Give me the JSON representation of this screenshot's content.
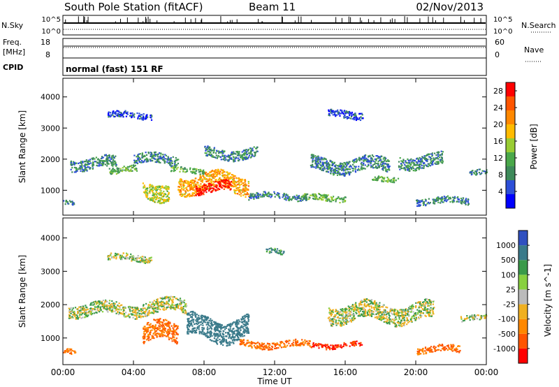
{
  "header": {
    "station": "South Pole Station (fitACF)",
    "beam": "Beam 11",
    "date": "02/Nov/2013"
  },
  "noise_panel": {
    "left_label": "N.Sky",
    "right_label": "N.Search",
    "left_ticks": [
      "10^5",
      "10^0"
    ],
    "right_ticks": [
      "10^5",
      "10^0"
    ]
  },
  "freq_panel": {
    "left_label_1": "Freq.",
    "left_label_2": "[MHz]",
    "right_label": "Nave",
    "left_ticks": [
      "18",
      "8"
    ],
    "right_ticks": [
      "60",
      "0"
    ]
  },
  "cpid_panel": {
    "label": "CPID",
    "text": "normal (fast) 151 RF"
  },
  "axes": {
    "ylabel": "Slant Range [km]",
    "xlabel": "Time UT",
    "xticks": [
      "00:00",
      "04:00",
      "08:00",
      "12:00",
      "16:00",
      "20:00",
      "00:00"
    ],
    "yticks": [
      "1000",
      "2000",
      "3000",
      "4000"
    ]
  },
  "colors": {
    "power_scale": [
      "#0000ff",
      "#2d4fd8",
      "#3e8a5a",
      "#4aa84a",
      "#99cc33",
      "#ffbb00",
      "#ff8800",
      "#ff5500",
      "#ff0000"
    ],
    "velocity_scale": [
      "#3050c0",
      "#3a7a8a",
      "#3a9a4a",
      "#88d040",
      "#bbbbbb",
      "#f0b020",
      "#ff8800",
      "#ff5500",
      "#ff0000"
    ]
  },
  "chart_data": [
    {
      "type": "heatmap",
      "name": "power",
      "title": "",
      "xlabel": "",
      "ylabel": "Slant Range [km]",
      "xlim": [
        0,
        24
      ],
      "ylim": [
        200,
        4600
      ],
      "colorbar": {
        "label": "Power [dB]",
        "ticks": [
          "4",
          "8",
          "12",
          "16",
          "20",
          "24",
          "28"
        ],
        "range": [
          0,
          30
        ]
      },
      "features": [
        {
          "x": [
            0.0,
            0.6
          ],
          "y": [
            550,
            750
          ],
          "level": 8
        },
        {
          "x": [
            0.4,
            3.0
          ],
          "y": [
            1650,
            2100
          ],
          "level": 8
        },
        {
          "x": [
            2.6,
            4.2
          ],
          "y": [
            1550,
            1800
          ],
          "level": 12
        },
        {
          "x": [
            4.0,
            6.5
          ],
          "y": [
            1800,
            2200
          ],
          "level": 8
        },
        {
          "x": [
            6.0,
            8.0
          ],
          "y": [
            1550,
            1750
          ],
          "level": 12
        },
        {
          "x": [
            8.0,
            11.0
          ],
          "y": [
            2000,
            2400
          ],
          "level": 8
        },
        {
          "x": [
            4.5,
            6.0
          ],
          "y": [
            700,
            1400
          ],
          "level": 16
        },
        {
          "x": [
            6.5,
            10.5
          ],
          "y": [
            900,
            1600
          ],
          "level": 20
        },
        {
          "x": [
            7.5,
            9.5
          ],
          "y": [
            900,
            1300
          ],
          "level": 28
        },
        {
          "x": [
            10.5,
            13.8
          ],
          "y": [
            700,
            950
          ],
          "level": 8
        },
        {
          "x": [
            13.5,
            16.0
          ],
          "y": [
            650,
            900
          ],
          "level": 12
        },
        {
          "x": [
            14.0,
            18.5
          ],
          "y": [
            1550,
            2100
          ],
          "level": 8
        },
        {
          "x": [
            17.5,
            19.0
          ],
          "y": [
            1300,
            1500
          ],
          "level": 12
        },
        {
          "x": [
            19.0,
            21.5
          ],
          "y": [
            1700,
            2200
          ],
          "level": 8
        },
        {
          "x": [
            20.0,
            23.0
          ],
          "y": [
            550,
            800
          ],
          "level": 8
        },
        {
          "x": [
            23.0,
            24.0
          ],
          "y": [
            1500,
            1700
          ],
          "level": 8
        },
        {
          "x": [
            2.5,
            5.0
          ],
          "y": [
            3300,
            3550
          ],
          "level": 4
        },
        {
          "x": [
            15.0,
            17.0
          ],
          "y": [
            3300,
            3600
          ],
          "level": 4
        }
      ]
    },
    {
      "type": "heatmap",
      "name": "velocity",
      "title": "",
      "xlabel": "Time UT",
      "ylabel": "Slant Range [km]",
      "xlim": [
        0,
        24
      ],
      "ylim": [
        200,
        4600
      ],
      "colorbar": {
        "label": "Velocity [m s^-1]",
        "ticks": [
          "1000",
          "500",
          "100",
          "25",
          "-25",
          "-100",
          "-500",
          "-1000"
        ],
        "range": [
          -1000,
          1000
        ]
      },
      "features": [
        {
          "x": [
            0.0,
            0.7
          ],
          "y": [
            550,
            750
          ],
          "level": -500
        },
        {
          "x": [
            0.3,
            4.5
          ],
          "y": [
            1650,
            2100
          ],
          "level": 0
        },
        {
          "x": [
            4.5,
            7.0
          ],
          "y": [
            1700,
            2200
          ],
          "level": 0
        },
        {
          "x": [
            4.5,
            6.5
          ],
          "y": [
            800,
            1500
          ],
          "level": -500
        },
        {
          "x": [
            7.0,
            10.5
          ],
          "y": [
            900,
            1700
          ],
          "level": 300
        },
        {
          "x": [
            10.0,
            14.0
          ],
          "y": [
            700,
            950
          ],
          "level": -500
        },
        {
          "x": [
            14.0,
            17.0
          ],
          "y": [
            700,
            900
          ],
          "level": -1000
        },
        {
          "x": [
            15.0,
            21.0
          ],
          "y": [
            1450,
            2100
          ],
          "level": 0
        },
        {
          "x": [
            20.0,
            22.5
          ],
          "y": [
            550,
            800
          ],
          "level": -500
        },
        {
          "x": [
            22.5,
            24.0
          ],
          "y": [
            1500,
            1700
          ],
          "level": 0
        },
        {
          "x": [
            2.5,
            5.0
          ],
          "y": [
            3300,
            3550
          ],
          "level": 0
        },
        {
          "x": [
            11.5,
            12.5
          ],
          "y": [
            3500,
            3700
          ],
          "level": 100
        }
      ]
    }
  ]
}
